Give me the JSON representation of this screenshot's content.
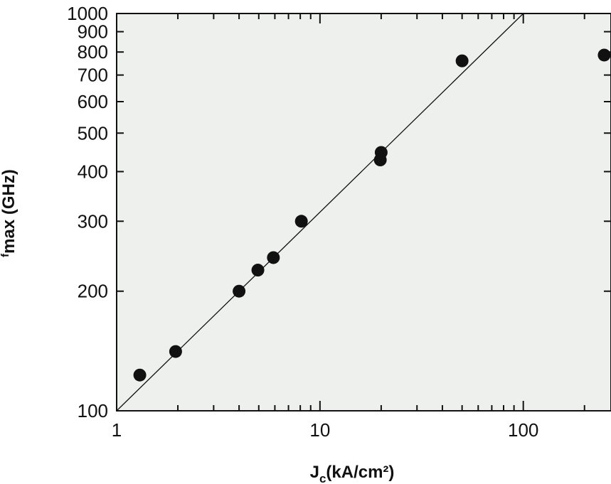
{
  "chart_data": {
    "type": "scatter",
    "title": "",
    "xlabel": {
      "main": "J",
      "sub": "c",
      "rest": "(kA/cm²)"
    },
    "ylabel": {
      "super": "f",
      "rest": "max (GHz)"
    },
    "xscale": "log",
    "yscale": "log",
    "xlim": [
      1,
      270
    ],
    "ylim": [
      100,
      1000
    ],
    "grid": false,
    "legend": "none",
    "background_color": "#eef0ee",
    "marker_color": "#111111",
    "x_tick_labels": [
      "1",
      "10",
      "100"
    ],
    "y_tick_labels": [
      "100",
      "200",
      "300",
      "400",
      "500",
      "600",
      "700",
      "800",
      "900",
      "1000"
    ],
    "series": [
      {
        "x": [
          1.3,
          1.95,
          4.0,
          4.95,
          5.9,
          8.1,
          19.8,
          20.0,
          50,
          250
        ],
        "y": [
          123,
          141,
          200,
          226,
          243,
          300,
          428,
          447,
          760,
          786
        ]
      }
    ],
    "fit_line": {
      "x": [
        1,
        100
      ],
      "y": [
        100,
        1000
      ]
    }
  }
}
